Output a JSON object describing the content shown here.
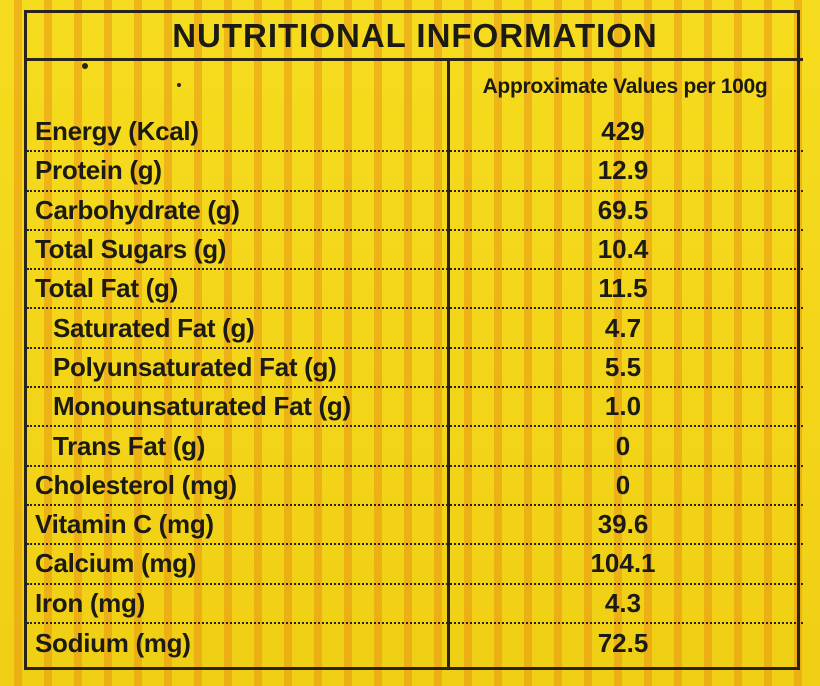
{
  "title": "NUTRITIONAL INFORMATION",
  "column_header": "Approximate Values per 100g",
  "rows": [
    {
      "name": "Energy (Kcal)",
      "value": "429",
      "indent": false
    },
    {
      "name": "Protein (g)",
      "value": "12.9",
      "indent": false
    },
    {
      "name": "Carbohydrate (g)",
      "value": "69.5",
      "indent": false
    },
    {
      "name": "Total Sugars (g)",
      "value": "10.4",
      "indent": false
    },
    {
      "name": "Total Fat (g)",
      "value": "11.5",
      "indent": false
    },
    {
      "name": "Saturated Fat (g)",
      "value": "4.7",
      "indent": true
    },
    {
      "name": "Polyunsaturated Fat (g)",
      "value": "5.5",
      "indent": true
    },
    {
      "name": "Monounsaturated Fat (g)",
      "value": "1.0",
      "indent": true
    },
    {
      "name": "Trans Fat (g)",
      "value": "0",
      "indent": true
    },
    {
      "name": "Cholesterol (mg)",
      "value": "0",
      "indent": false
    },
    {
      "name": "Vitamin C (mg)",
      "value": "39.6",
      "indent": false
    },
    {
      "name": "Calcium (mg)",
      "value": "104.1",
      "indent": false
    },
    {
      "name": "Iron (mg)",
      "value": "4.3",
      "indent": false
    },
    {
      "name": "Sodium (mg)",
      "value": "72.5",
      "indent": false
    }
  ],
  "colors": {
    "background": "#f2d21a",
    "stripes": "#e89614",
    "ink": "#1c1a14"
  }
}
